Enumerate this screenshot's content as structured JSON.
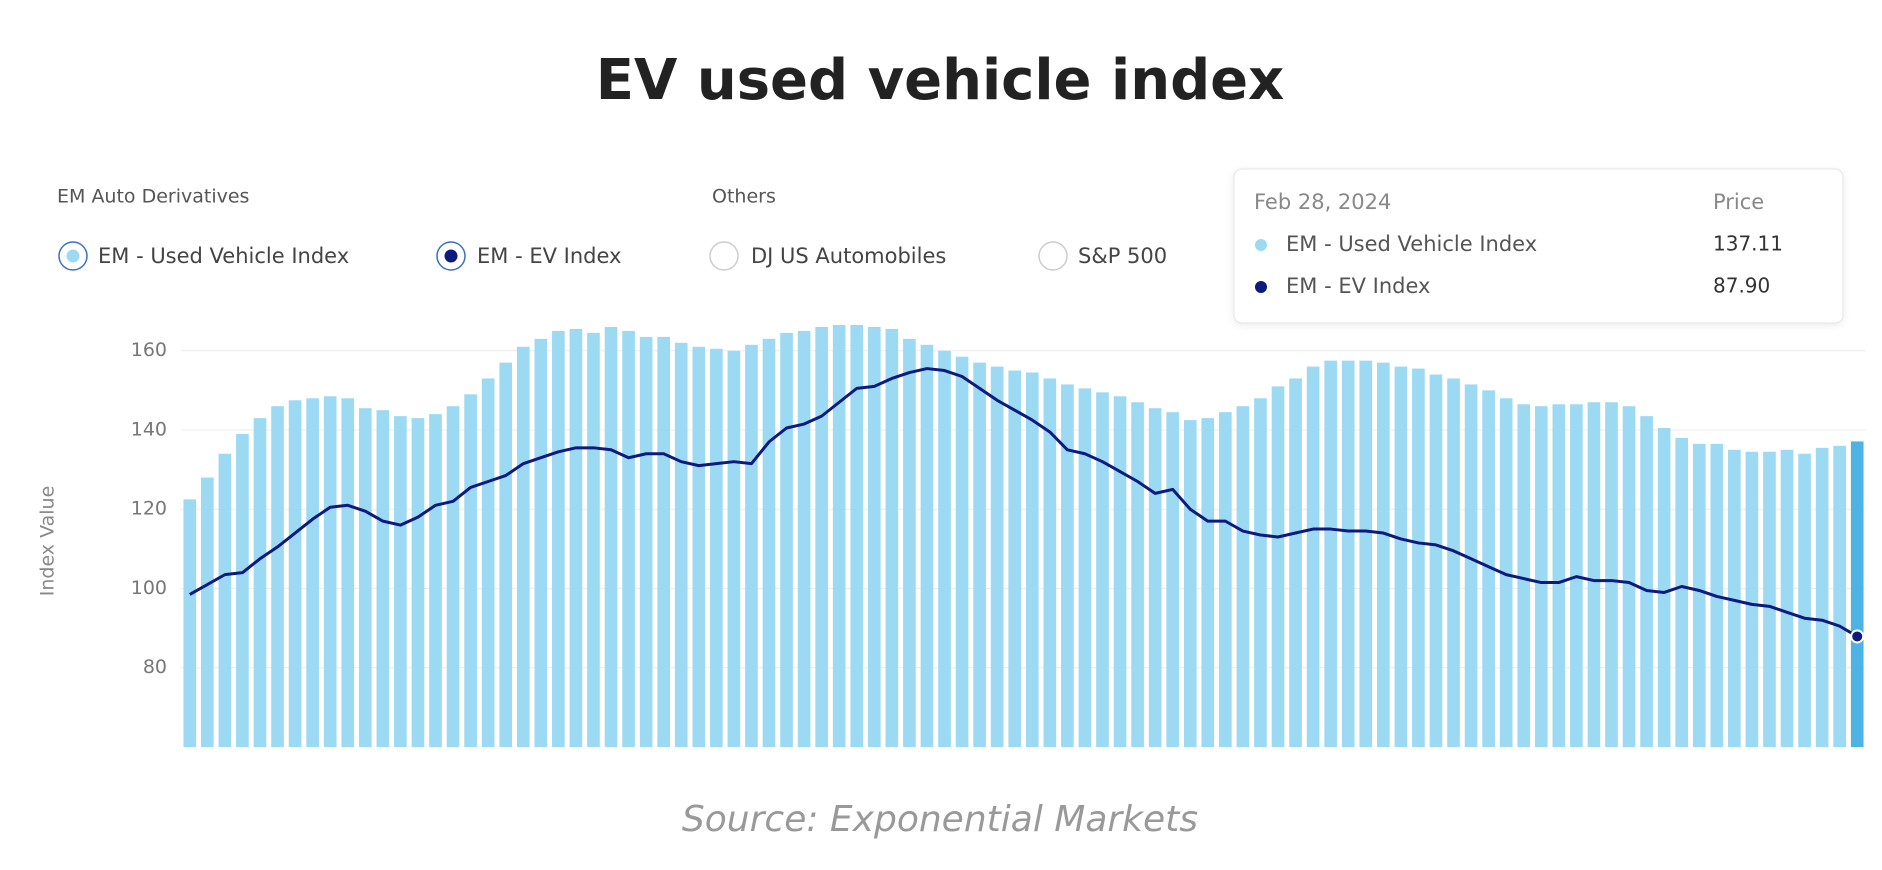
{
  "chart_data": {
    "type": "bar-line",
    "title": "EV used vehicle index",
    "source": "Source: Exponential Markets",
    "y_label": "Index Value",
    "ylim": [
      60,
      167
    ],
    "yticks": [
      80,
      100,
      120,
      140,
      160
    ],
    "grid": true,
    "group_title": "EM Auto Derivatives",
    "others": {
      "title": "Others",
      "items": [
        "DJ US Automobiles",
        "S&P 500"
      ]
    },
    "tooltip": {
      "date": "Feb 28, 2024",
      "header": "Price",
      "labels": [
        "137.11",
        "87.90"
      ]
    },
    "series": [
      {
        "name": "EM - Used Vehicle Index",
        "type": "bar",
        "color": "#9cd9f3",
        "highlight_color": "#4cb3e4",
        "values": [
          122.5,
          128,
          134,
          139,
          143,
          146,
          147.5,
          148,
          148.5,
          148,
          145.5,
          145,
          143.5,
          143,
          144,
          146,
          149,
          153,
          157,
          161,
          163,
          165,
          165.5,
          164.5,
          166,
          165,
          163.5,
          163.5,
          162,
          161,
          160.5,
          160,
          161.5,
          163,
          164.5,
          165,
          166,
          166.5,
          166.5,
          166,
          165.5,
          163,
          161.5,
          160,
          158.5,
          157,
          156,
          155,
          154.5,
          153,
          151.5,
          150.5,
          149.5,
          148.5,
          147,
          145.5,
          144.5,
          142.5,
          143,
          144.5,
          146,
          148,
          151,
          153,
          156,
          157.5,
          157.5,
          157.5,
          157,
          156,
          155.5,
          154,
          153,
          151.5,
          150,
          148,
          146.5,
          146,
          146.5,
          146.5,
          147,
          147,
          146,
          143.5,
          140.5,
          138,
          136.5,
          136.5,
          135,
          134.5,
          134.5,
          135,
          134,
          135.5,
          136,
          137.11
        ]
      },
      {
        "name": "EM - EV Index",
        "type": "line",
        "color": "#0d1a7e",
        "values": [
          98.5,
          101,
          103.5,
          104,
          107.5,
          110.5,
          114,
          117.5,
          120.5,
          121,
          119.5,
          117,
          116,
          118,
          121,
          122,
          125.5,
          127,
          128.5,
          131.5,
          133,
          134.5,
          135.5,
          135.5,
          135,
          133,
          134,
          134,
          132,
          131,
          131.5,
          132,
          131.5,
          137,
          140.5,
          141.5,
          143.5,
          147,
          150.5,
          151,
          153,
          154.5,
          155.5,
          155,
          153.5,
          150.5,
          147.5,
          145,
          142.5,
          139.5,
          135,
          134,
          132,
          129.5,
          127,
          124,
          125,
          120,
          117,
          117,
          114.5,
          113.5,
          113,
          114,
          115,
          115,
          114.5,
          114.5,
          114,
          112.5,
          111.5,
          111,
          109.5,
          107.5,
          105.5,
          103.5,
          102.5,
          101.5,
          101.5,
          103,
          102,
          102,
          101.5,
          99.5,
          99,
          100.5,
          99.5,
          98,
          97,
          96,
          95.5,
          94,
          92.5,
          92,
          90.5,
          87.9
        ]
      }
    ]
  }
}
